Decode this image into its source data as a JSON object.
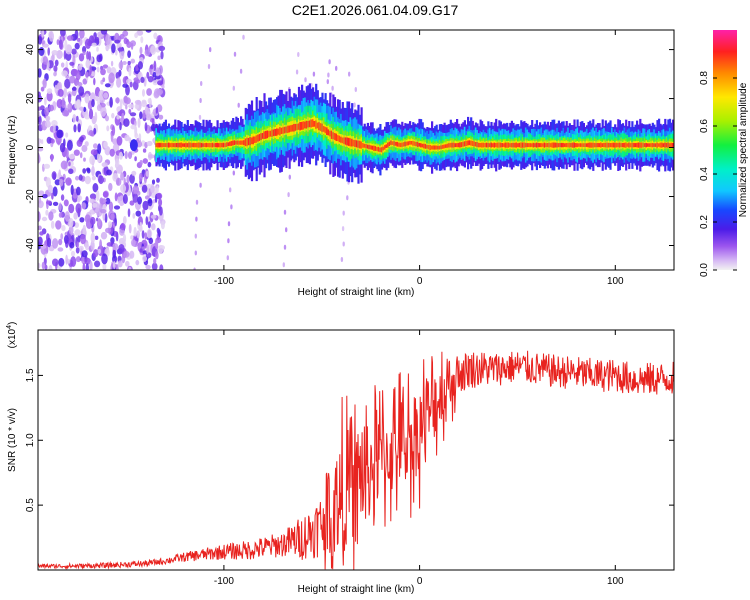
{
  "title": "C2E1.2026.061.04.09.G17",
  "chart_data": [
    {
      "type": "heatmap",
      "name": "spectrogram",
      "xlabel": "Height of straight line (km)",
      "ylabel": "Frequency (Hz)",
      "xlim": [
        -195,
        130
      ],
      "ylim": [
        -50,
        48
      ],
      "xticks": [
        -100,
        0,
        100
      ],
      "xtick_labels": [
        "-100",
        "0",
        "100"
      ],
      "yticks": [
        40,
        20,
        0,
        -20,
        -40
      ],
      "ytick_labels": [
        "40",
        "20",
        "0",
        "-20",
        "-40"
      ],
      "noise_region_x": [
        -195,
        -133
      ],
      "ridge": {
        "x": [
          -135,
          -130,
          -120,
          -110,
          -100,
          -95,
          -90,
          -85,
          -80,
          -75,
          -70,
          -65,
          -60,
          -55,
          -50,
          -45,
          -40,
          -35,
          -30,
          -25,
          -20,
          -15,
          -10,
          -5,
          0,
          5,
          10,
          15,
          20,
          25,
          30,
          40,
          50,
          60,
          70,
          80,
          90,
          100,
          110,
          120,
          130
        ],
        "freq": [
          1,
          1,
          1,
          1,
          1,
          2,
          2,
          3,
          5,
          6,
          7,
          8,
          9,
          10,
          8,
          5,
          3,
          2,
          1,
          0,
          -1,
          2,
          1,
          2,
          1,
          0,
          0,
          1,
          1,
          2,
          1,
          1,
          1,
          1,
          1,
          1,
          1,
          1,
          1,
          1,
          1
        ]
      },
      "colorbar": {
        "label": "Normalized spectral amplitude",
        "range": [
          0,
          1
        ],
        "ticks": [
          0.0,
          0.2,
          0.4,
          0.6,
          0.8
        ],
        "tick_labels": [
          "0.0",
          "0.2",
          "0.4",
          "0.6",
          "0.8"
        ]
      }
    },
    {
      "type": "line",
      "name": "snr",
      "xlabel": "Height of straight line (km)",
      "ylabel": "SNR (10 * v/v)",
      "scale_label": "(x10",
      "scale_exponent": "4",
      "xlim": [
        -195,
        130
      ],
      "ylim": [
        0,
        18500
      ],
      "xticks": [
        -100,
        0,
        100
      ],
      "xtick_labels": [
        "-100",
        "0",
        "100"
      ],
      "yticks": [
        5000,
        10000,
        15000
      ],
      "ytick_labels": [
        "0.5",
        "1.0",
        "1.5"
      ],
      "color": "#e8231f",
      "envelope": {
        "x": [
          -195,
          -180,
          -160,
          -140,
          -130,
          -120,
          -110,
          -100,
          -90,
          -80,
          -70,
          -60,
          -50,
          -45,
          -40,
          -35,
          -30,
          -25,
          -20,
          -15,
          -10,
          -5,
          0,
          5,
          10,
          15,
          20,
          25,
          30,
          40,
          50,
          60,
          70,
          80,
          90,
          100,
          110,
          120,
          130
        ],
        "snr": [
          300,
          300,
          350,
          500,
          700,
          1000,
          1200,
          1400,
          1500,
          1700,
          2000,
          2500,
          3500,
          4500,
          5500,
          6500,
          7000,
          8000,
          8500,
          9000,
          10000,
          10000,
          11000,
          12000,
          13500,
          14500,
          15000,
          15500,
          15500,
          15500,
          15700,
          15500,
          15300,
          15200,
          15000,
          15000,
          14700,
          14700,
          14800
        ]
      },
      "noise_amplitude": {
        "x": [
          -195,
          -130,
          -100,
          -70,
          -50,
          -40,
          -30,
          -20,
          -10,
          0,
          10,
          20,
          40,
          130
        ],
        "amp": [
          150,
          250,
          600,
          1000,
          2500,
          4500,
          3500,
          3500,
          3500,
          3500,
          2500,
          1600,
          1300,
          1300
        ]
      }
    }
  ]
}
